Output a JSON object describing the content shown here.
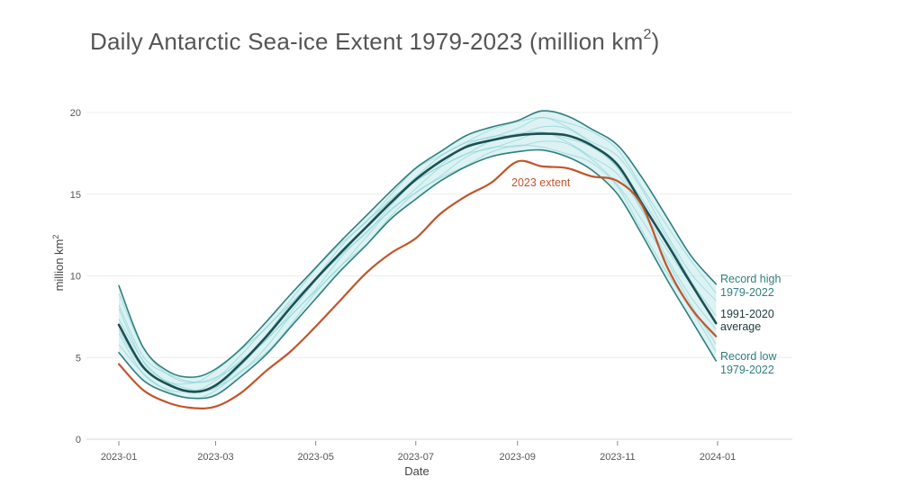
{
  "chart_data": {
    "type": "line",
    "title": "Daily Antarctic Sea-ice Extent 1979-2023 (million km",
    "title_sup": "2",
    "title_close": ")",
    "xlabel": "Date",
    "ylabel": "million km",
    "ylabel_sup": "2",
    "xlim": [
      "2023-01-01",
      "2024-01-01"
    ],
    "ylim": [
      0,
      20
    ],
    "x_ticks": [
      "2023-01",
      "2023-03",
      "2023-05",
      "2023-07",
      "2023-09",
      "2023-11",
      "2024-01"
    ],
    "y_ticks": [
      0,
      5,
      10,
      15,
      20
    ],
    "grid": "horizontal",
    "x": [
      "2023-01-01",
      "2023-01-16",
      "2023-02-01",
      "2023-02-16",
      "2023-03-01",
      "2023-03-16",
      "2023-04-01",
      "2023-04-16",
      "2023-05-01",
      "2023-05-16",
      "2023-06-01",
      "2023-06-16",
      "2023-07-01",
      "2023-07-16",
      "2023-08-01",
      "2023-08-16",
      "2023-09-01",
      "2023-09-16",
      "2023-10-01",
      "2023-10-16",
      "2023-11-01",
      "2023-11-16",
      "2023-12-01",
      "2023-12-16",
      "2023-12-31"
    ],
    "series": [
      {
        "name": "Record high 1979-2022",
        "color": "#2f7f7e",
        "values": [
          9.4,
          5.6,
          4.1,
          3.8,
          4.3,
          5.5,
          7.2,
          8.9,
          10.5,
          12.1,
          13.7,
          15.2,
          16.6,
          17.6,
          18.6,
          19.1,
          19.5,
          20.1,
          19.8,
          19.0,
          18.0,
          16.0,
          13.6,
          11.2,
          9.5
        ]
      },
      {
        "name": "1991-2020 average",
        "color": "#1d4f52",
        "values": [
          7.0,
          4.4,
          3.3,
          2.9,
          3.3,
          4.6,
          6.3,
          8.1,
          9.8,
          11.4,
          13.0,
          14.5,
          15.9,
          17.0,
          17.9,
          18.3,
          18.6,
          18.7,
          18.6,
          18.0,
          16.8,
          14.4,
          12.0,
          9.5,
          7.1
        ]
      },
      {
        "name": "Record low 1979-2022",
        "color": "#2f7f7e",
        "values": [
          5.3,
          3.6,
          2.8,
          2.5,
          2.7,
          3.8,
          5.2,
          6.9,
          8.6,
          10.3,
          11.9,
          13.5,
          14.7,
          15.8,
          16.7,
          17.3,
          17.6,
          17.7,
          17.3,
          16.5,
          15.0,
          12.5,
          9.8,
          7.3,
          4.8
        ]
      },
      {
        "name": "2023 extent",
        "color": "#c0552b",
        "values": [
          4.6,
          3.0,
          2.2,
          1.9,
          2.0,
          2.8,
          4.2,
          5.4,
          6.9,
          8.5,
          10.2,
          11.4,
          12.3,
          13.8,
          14.9,
          15.7,
          17.0,
          16.7,
          16.6,
          16.1,
          15.8,
          14.3,
          10.6,
          8.0,
          6.3
        ]
      }
    ],
    "labels": {
      "record_high_1": "Record high",
      "record_high_2": "1979-2022",
      "average_1": "1991-2020",
      "average_2": "average",
      "record_low_1": "Record low",
      "record_low_2": "1979-2022",
      "extent_2023": "2023 extent"
    }
  }
}
